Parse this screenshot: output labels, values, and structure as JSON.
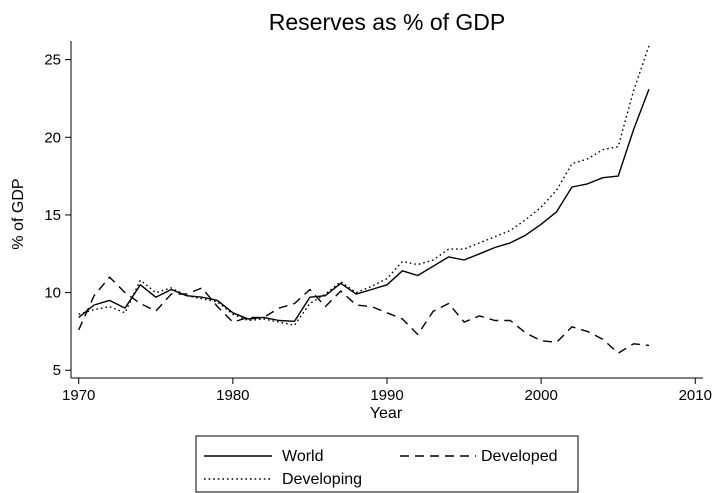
{
  "chart_data": {
    "type": "line",
    "title": "Reserves as % of GDP",
    "xlabel": "Year",
    "ylabel": "% of GDP",
    "xlim": [
      1969.5,
      2010.5
    ],
    "ylim": [
      4.5,
      26.2
    ],
    "xticks": [
      1970,
      1980,
      1990,
      2000,
      2010
    ],
    "yticks": [
      5,
      10,
      15,
      20,
      25
    ],
    "grid": false,
    "legend_position": "bottom",
    "x": [
      1970,
      1971,
      1972,
      1973,
      1974,
      1975,
      1976,
      1977,
      1978,
      1979,
      1980,
      1981,
      1982,
      1983,
      1984,
      1985,
      1986,
      1987,
      1988,
      1989,
      1990,
      1991,
      1992,
      1993,
      1994,
      1995,
      1996,
      1997,
      1998,
      1999,
      2000,
      2001,
      2002,
      2003,
      2004,
      2005,
      2006,
      2007
    ],
    "series": [
      {
        "name": "World",
        "dash": "solid",
        "values": [
          8.4,
          9.2,
          9.5,
          9.0,
          10.5,
          9.7,
          10.2,
          9.8,
          9.7,
          9.5,
          8.7,
          8.3,
          8.4,
          8.2,
          8.15,
          9.7,
          9.8,
          10.6,
          9.9,
          10.2,
          10.5,
          11.4,
          11.1,
          11.7,
          12.3,
          12.1,
          12.5,
          12.9,
          13.2,
          13.7,
          14.4,
          15.2,
          16.8,
          17.0,
          17.4,
          17.5,
          20.5,
          23.1
        ]
      },
      {
        "name": "Developed",
        "dash": "dashed",
        "values": [
          7.6,
          9.8,
          11.0,
          10.0,
          9.3,
          8.8,
          9.9,
          9.9,
          10.3,
          9.1,
          8.1,
          8.4,
          8.4,
          9.0,
          9.3,
          10.2,
          9.1,
          10.1,
          9.2,
          9.1,
          8.7,
          8.3,
          7.3,
          8.8,
          9.3,
          8.1,
          8.5,
          8.2,
          8.2,
          7.4,
          6.9,
          6.8,
          7.8,
          7.5,
          7.0,
          6.1,
          6.7,
          6.6
        ]
      },
      {
        "name": "Developing",
        "dash": "dotted",
        "values": [
          8.6,
          8.9,
          9.1,
          8.7,
          10.8,
          10.0,
          10.3,
          9.8,
          9.6,
          9.4,
          8.6,
          8.2,
          8.3,
          8.1,
          7.9,
          9.3,
          9.9,
          10.7,
          10.0,
          10.4,
          10.9,
          12.0,
          11.8,
          12.1,
          12.8,
          12.8,
          13.2,
          13.6,
          14.0,
          14.7,
          15.5,
          16.6,
          18.3,
          18.6,
          19.2,
          19.4,
          23.0,
          25.9
        ]
      }
    ]
  }
}
